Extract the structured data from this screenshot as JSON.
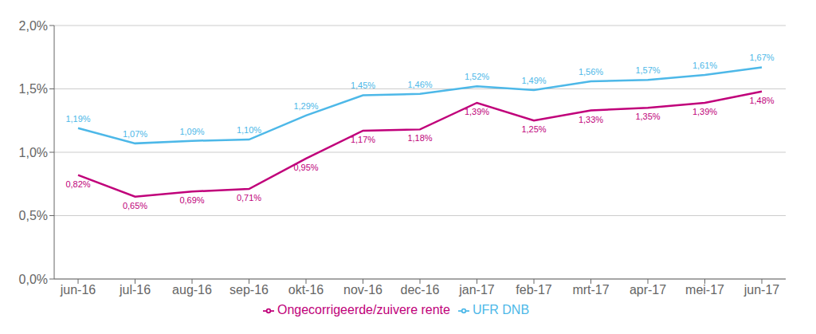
{
  "chart_data": {
    "type": "line",
    "categories": [
      "jun-16",
      "jul-16",
      "aug-16",
      "sep-16",
      "okt-16",
      "nov-16",
      "dec-16",
      "jan-17",
      "feb-17",
      "mrt-17",
      "apr-17",
      "mei-17",
      "jun-17"
    ],
    "series": [
      {
        "name": "UFR DNB",
        "color": "#4DB8E8",
        "values": [
          1.19,
          1.07,
          1.09,
          1.1,
          1.29,
          1.45,
          1.46,
          1.52,
          1.49,
          1.56,
          1.57,
          1.61,
          1.67
        ],
        "value_labels": [
          "1,19%",
          "1,07%",
          "1,09%",
          "1,10%",
          "1,29%",
          "1,45%",
          "1,46%",
          "1,52%",
          "1,49%",
          "1,56%",
          "1,57%",
          "1,61%",
          "1,67%"
        ]
      },
      {
        "name": "Ongecorrigeerde/zuivere rente",
        "color": "#C0007A",
        "values": [
          0.82,
          0.65,
          0.69,
          0.71,
          0.95,
          1.17,
          1.18,
          1.39,
          1.25,
          1.33,
          1.35,
          1.39,
          1.48
        ],
        "value_labels": [
          "0,82%",
          "0,65%",
          "0,69%",
          "0,71%",
          "0,95%",
          "1,17%",
          "1,18%",
          "1,39%",
          "1,25%",
          "1,33%",
          "1,35%",
          "1,39%",
          "1,48%"
        ]
      }
    ],
    "ylim": [
      0.0,
      2.0
    ],
    "yticks": [
      {
        "value": 0.0,
        "label": "0,0%"
      },
      {
        "value": 0.5,
        "label": "0,5%"
      },
      {
        "value": 1.0,
        "label": "1,0%"
      },
      {
        "value": 1.5,
        "label": "1,5%"
      },
      {
        "value": 2.0,
        "label": "2,0%"
      }
    ],
    "grid": true,
    "legend": "bottom",
    "data_labels": true
  }
}
